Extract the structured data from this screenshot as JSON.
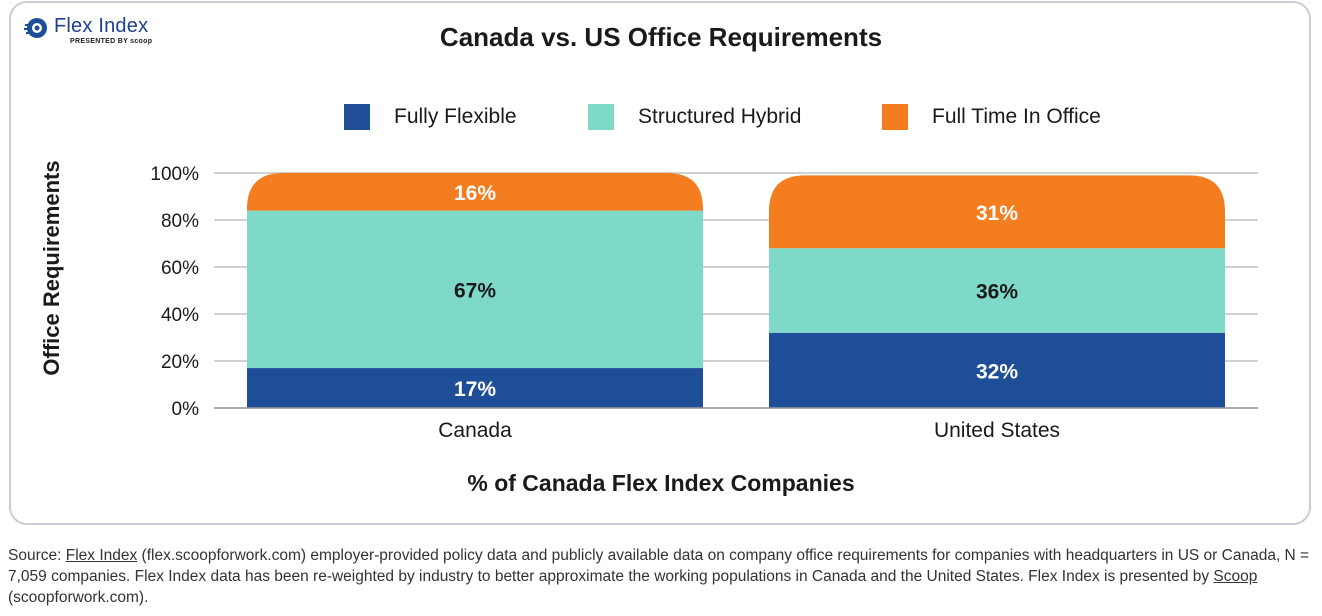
{
  "logo": {
    "name": "Flex Index",
    "subtitle": "PRESENTED BY scoop"
  },
  "colors": {
    "fully_flexible": "#1f4e99",
    "structured_hybrid": "#7ed9c8",
    "full_time_in_office": "#f47d20"
  },
  "chart_data": {
    "type": "bar",
    "stacked": true,
    "title": "Canada vs. US Office Requirements",
    "xlabel": "% of Canada Flex Index Companies",
    "ylabel": "Office Requirements",
    "ylim": [
      0,
      100
    ],
    "yticks": [
      "0%",
      "20%",
      "40%",
      "60%",
      "80%",
      "100%"
    ],
    "grid": true,
    "legend_position": "top-center",
    "categories": [
      "Canada",
      "United States"
    ],
    "series": [
      {
        "name": "Fully Flexible",
        "values": [
          17,
          32
        ],
        "labels": [
          "17%",
          "32%"
        ]
      },
      {
        "name": "Structured Hybrid",
        "values": [
          67,
          36
        ],
        "labels": [
          "67%",
          "36%"
        ]
      },
      {
        "name": "Full Time In Office",
        "values": [
          16,
          31
        ],
        "labels": [
          "16%",
          "31%"
        ]
      }
    ]
  },
  "source": {
    "prefix": "Source: ",
    "link1": "Flex Index",
    "text1": " (flex.scoopforwork.com) employer-provided policy data and publicly available data on company office requirements for companies with headquarters in US or Canada, N = 7,059 companies. Flex Index data has been re-weighted by industry to better approximate the working populations in Canada and the United States. Flex Index is presented by ",
    "link2": "Scoop",
    "text2": " (scoopforwork.com)."
  }
}
